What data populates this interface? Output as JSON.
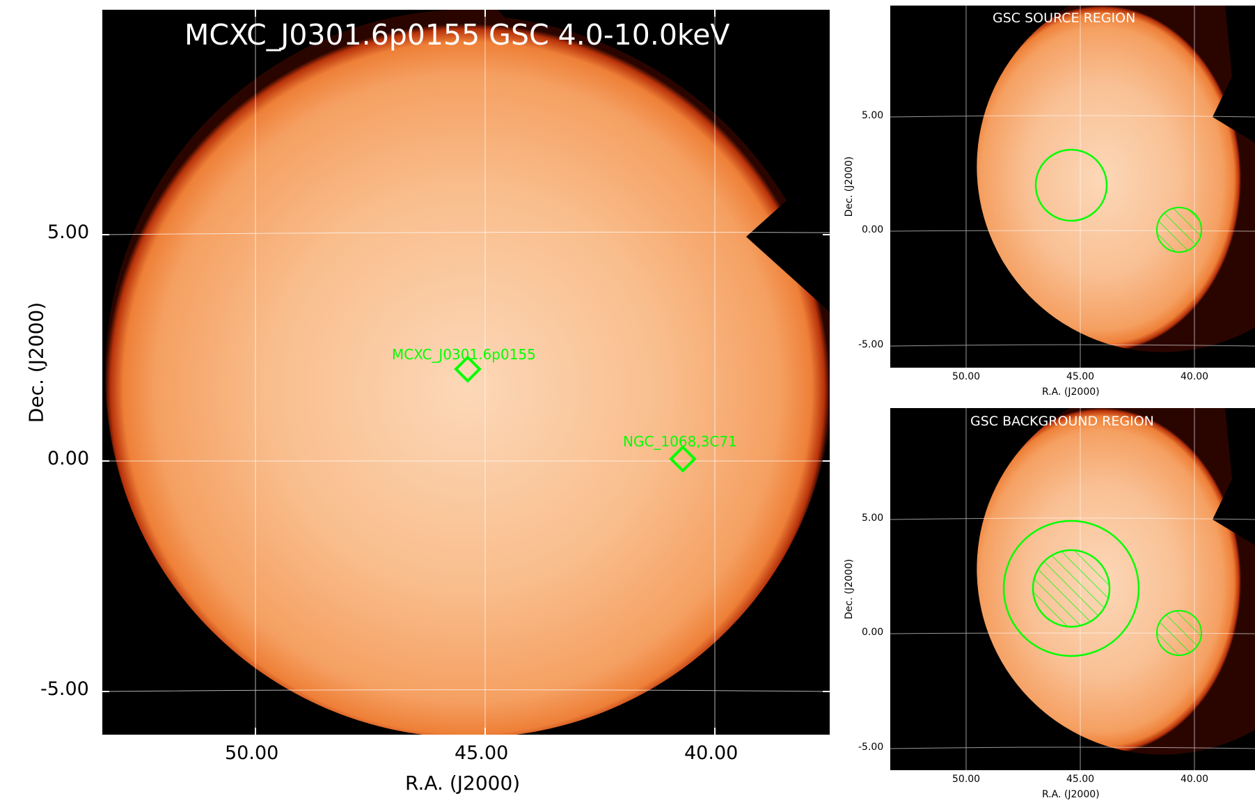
{
  "main": {
    "title": "MCXC_J0301.6p0155 GSC 4.0-10.0keV",
    "xlabel": "R.A. (J2000)",
    "ylabel": "Dec. (J2000)",
    "xticks": [
      "50.00",
      "45.00",
      "40.00"
    ],
    "yticks": [
      "5.00",
      "0.00",
      "-5.00"
    ],
    "sources": [
      {
        "name": "MCXC_J0301.6p0155",
        "ra": 45.4,
        "dec": 1.93
      },
      {
        "name": "NGC_1068,3C71",
        "ra": 40.67,
        "dec": -0.01
      }
    ]
  },
  "source_panel": {
    "title": "GSC SOURCE REGION",
    "xlabel": "R.A. (J2000)",
    "ylabel": "Dec. (J2000)",
    "xticks": [
      "50.00",
      "45.00",
      "40.00"
    ],
    "yticks": [
      "5.00",
      "0.00",
      "-5.00"
    ]
  },
  "background_panel": {
    "title": "GSC BACKGROUND REGION",
    "xlabel": "R.A. (J2000)",
    "ylabel": "Dec. (J2000)",
    "xticks": [
      "50.00",
      "45.00",
      "40.00"
    ],
    "yticks": [
      "5.00",
      "0.00",
      "-5.00"
    ]
  },
  "colors": {
    "frame_background": "#000000",
    "map_orange": "#f5a062",
    "map_center": "#fbd3b0",
    "region_green": "#00ff00",
    "grid": "#ffffff"
  }
}
